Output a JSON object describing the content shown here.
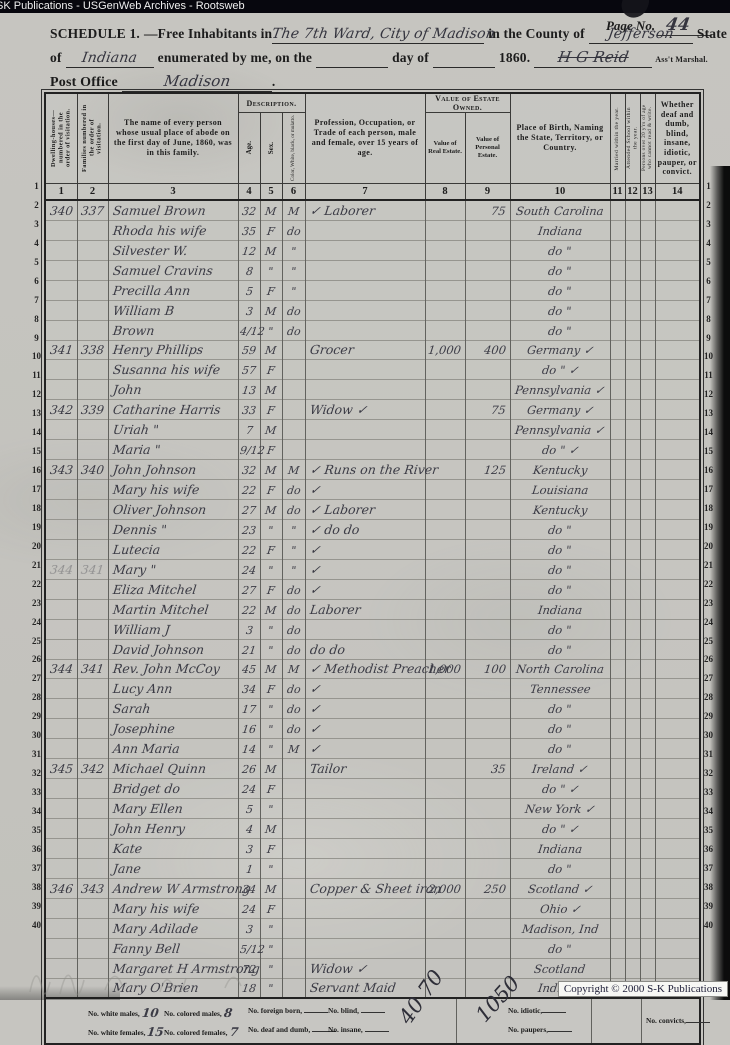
{
  "banner": {
    "text": "SK Publications - USGenWeb Archives - Rootsweb"
  },
  "page_no": {
    "label": "Page No.",
    "value": "44"
  },
  "schedule": {
    "title": "SCHEDULE 1.",
    "free_inhabitants": "—Free Inhabitants in",
    "place": "The 7th Ward, City of Madison",
    "in_county": "in the County of",
    "county": "Jefferson",
    "state_word": "State",
    "of_word": "of",
    "state": "Indiana",
    "enumerated": "enumerated by me, on the",
    "day_of": "day of",
    "year": "1860.",
    "marshal_sig": "H G Reid",
    "marshal_label": "Ass't Marshal.",
    "post_office_label": "Post Office",
    "post_office": "Madison",
    "period": "."
  },
  "table": {
    "description_header": "Description.",
    "estate_header": "Value of Estate Owned.",
    "columns": {
      "c1": "Dwelling-houses— numbered in the order of visitation.",
      "c2": "Families numbered in the order of visitation.",
      "c3": "The name of every person whose usual place of abode on the first day of June, 1860, was in this family.",
      "c4": "Age.",
      "c5": "Sex.",
      "c6": "Color, White, black, or mulatto.",
      "c7": "Profession, Occupation, or Trade of each person, male and female, over 15 years of age.",
      "c8": "Value of Real Estate.",
      "c9": "Value of Personal Estate.",
      "c10": "Place of Birth, Naming the State, Territory, or Country.",
      "c11": "Married within the year.",
      "c12": "Attended School within the year.",
      "c13": "Persons over 20 y'rs of age who cannot read & write.",
      "c14": "Whether deaf and dumb, blind, insane, idiotic, pauper, or convict.",
      "numbers": [
        "1",
        "2",
        "3",
        "4",
        "5",
        "6",
        "7",
        "8",
        "9",
        "10",
        "11",
        "12",
        "13",
        "14"
      ]
    },
    "rows": [
      {
        "no": "1",
        "d": "340",
        "f": "337",
        "name": "Samuel Brown",
        "age": "32",
        "sex": "M",
        "col": "M",
        "occ": "✓ Laborer",
        "pe": "75",
        "born": "South Carolina"
      },
      {
        "no": "2",
        "name": "Rhoda his wife",
        "age": "35",
        "sex": "F",
        "col": "do",
        "born": "Indiana"
      },
      {
        "no": "3",
        "name": "Silvester W.",
        "age": "12",
        "sex": "M",
        "col": "\"",
        "born": "do  \""
      },
      {
        "no": "4",
        "name": "Samuel Cravins",
        "age": "8",
        "sex": "\"",
        "col": "\"",
        "born": "do  \""
      },
      {
        "no": "5",
        "name": "Precilla Ann",
        "age": "5",
        "sex": "F",
        "col": "\"",
        "born": "do  \""
      },
      {
        "no": "6",
        "name": "William B",
        "age": "3",
        "sex": "M",
        "col": "do",
        "born": "do  \""
      },
      {
        "no": "7",
        "name": "Brown",
        "age": "4/12",
        "sex": "\"",
        "col": "do",
        "born": "do  \""
      },
      {
        "no": "8",
        "d": "341",
        "f": "338",
        "name": "Henry Phillips",
        "age": "59",
        "sex": "M",
        "occ": "Grocer",
        "re": "1,000",
        "pe": "400",
        "born": "Germany ✓"
      },
      {
        "no": "9",
        "name": "Susanna his wife",
        "age": "57",
        "sex": "F",
        "born": "do  \" ✓"
      },
      {
        "no": "10",
        "name": "John",
        "age": "13",
        "sex": "M",
        "born": "Pennsylvania ✓"
      },
      {
        "no": "11",
        "d": "342",
        "f": "339",
        "name": "Catharine Harris",
        "age": "33",
        "sex": "F",
        "occ": "Widow  ✓",
        "pe": "75",
        "born": "Germany ✓"
      },
      {
        "no": "12",
        "name": "Uriah  \"",
        "age": "7",
        "sex": "M",
        "born": "Pennsylvania ✓"
      },
      {
        "no": "13",
        "name": "Maria  \"",
        "age": "9/12",
        "sex": "F",
        "born": "do  \" ✓"
      },
      {
        "no": "14",
        "d": "343",
        "f": "340",
        "name": "John Johnson",
        "age": "32",
        "sex": "M",
        "col": "M",
        "occ": "✓ Runs on the River",
        "pe": "125",
        "born": "Kentucky"
      },
      {
        "no": "15",
        "name": "Mary his wife",
        "age": "22",
        "sex": "F",
        "col": "do",
        "occ": "✓",
        "born": "Louisiana"
      },
      {
        "no": "16",
        "name": "Oliver Johnson",
        "age": "27",
        "sex": "M",
        "col": "do",
        "occ": "✓ Laborer",
        "born": "Kentucky"
      },
      {
        "no": "17",
        "name": "Dennis  \"",
        "age": "23",
        "sex": "\"",
        "col": "\"",
        "occ": "✓ do   do",
        "born": "do  \""
      },
      {
        "no": "18",
        "name": "Lutecia",
        "age": "22",
        "sex": "F",
        "col": "\"",
        "occ": "✓",
        "born": "do  \""
      },
      {
        "no": "19",
        "d": "344",
        "f": "341",
        "ghost": true,
        "name": "Mary  \"",
        "age": "24",
        "sex": "\"",
        "col": "\"",
        "occ": "✓",
        "born": "do  \""
      },
      {
        "no": "20",
        "name": "Eliza Mitchel",
        "age": "27",
        "sex": "F",
        "col": "do",
        "occ": "✓",
        "born": "do  \""
      },
      {
        "no": "21",
        "name": "Martin Mitchel",
        "age": "22",
        "sex": "M",
        "col": "do",
        "occ": "Laborer",
        "born": "Indiana"
      },
      {
        "no": "22",
        "name": "William J",
        "age": "3",
        "sex": "\"",
        "col": "do",
        "born": "do  \""
      },
      {
        "no": "23",
        "name": "David Johnson",
        "age": "21",
        "sex": "\"",
        "col": "do",
        "occ": "do    do",
        "born": "do  \""
      },
      {
        "no": "24",
        "d": "344",
        "f": "341",
        "name": "Rev. John McCoy",
        "age": "45",
        "sex": "M",
        "col": "M",
        "occ": "✓ Methodist Preacher",
        "re": "1,000",
        "pe": "100",
        "born": "North Carolina"
      },
      {
        "no": "25",
        "name": "Lucy Ann",
        "age": "34",
        "sex": "F",
        "col": "do",
        "occ": "✓",
        "born": "Tennessee"
      },
      {
        "no": "26",
        "name": "Sarah",
        "age": "17",
        "sex": "\"",
        "col": "do",
        "occ": "✓",
        "born": "do  \""
      },
      {
        "no": "27",
        "name": "Josephine",
        "age": "16",
        "sex": "\"",
        "col": "do",
        "occ": "✓",
        "born": "do  \""
      },
      {
        "no": "28",
        "name": "Ann Maria",
        "age": "14",
        "sex": "\"",
        "col": "M",
        "occ": "✓",
        "born": "do  \""
      },
      {
        "no": "29",
        "d": "345",
        "f": "342",
        "name": "Michael Quinn",
        "age": "26",
        "sex": "M",
        "occ": "Tailor",
        "pe": "35",
        "born": "Ireland ✓"
      },
      {
        "no": "30",
        "name": "Bridget do",
        "age": "24",
        "sex": "F",
        "born": "do  \" ✓"
      },
      {
        "no": "31",
        "name": "Mary Ellen",
        "age": "5",
        "sex": "\"",
        "born": "New York ✓"
      },
      {
        "no": "32",
        "name": "John Henry",
        "age": "4",
        "sex": "M",
        "born": "do  \" ✓"
      },
      {
        "no": "33",
        "name": "Kate",
        "age": "3",
        "sex": "F",
        "born": "Indiana"
      },
      {
        "no": "34",
        "name": "Jane",
        "age": "1",
        "sex": "\"",
        "born": "do  \""
      },
      {
        "no": "35",
        "d": "346",
        "f": "343",
        "name": "Andrew W Armstrong",
        "age": "34",
        "sex": "M",
        "occ": "Copper & Sheet iron",
        "re": "2,000",
        "pe": "250",
        "born": "Scotland ✓"
      },
      {
        "no": "36",
        "name": "Mary his wife",
        "age": "24",
        "sex": "F",
        "born": "Ohio ✓"
      },
      {
        "no": "37",
        "name": "Mary Adilade",
        "age": "3",
        "sex": "\"",
        "born": "Madison, Ind"
      },
      {
        "no": "38",
        "name": "Fanny Bell",
        "age": "5/12",
        "sex": "\"",
        "born": "do  \""
      },
      {
        "no": "39",
        "name": "Margaret H Armstrong",
        "age": "72",
        "sex": "\"",
        "occ": "Widow  ✓",
        "born": "Scotland"
      },
      {
        "no": "40",
        "name": "Mary O'Brien",
        "age": "18",
        "sex": "\"",
        "occ": "Servant Maid",
        "born": "Indiana"
      }
    ]
  },
  "summary": {
    "items_row1": [
      {
        "label": "No. white males,",
        "value": "10"
      },
      {
        "label": "No. colored males,",
        "value": "8"
      },
      {
        "label": "No. foreign born,",
        "value": ""
      },
      {
        "label": "No. blind,",
        "value": ""
      }
    ],
    "items_row2": [
      {
        "label": "No. white females,",
        "value": "15"
      },
      {
        "label": "No. colored females,",
        "value": "7"
      },
      {
        "label": "No. deaf and dumb,",
        "value": ""
      },
      {
        "label": "No. insane,",
        "value": ""
      }
    ],
    "idiotic_label": "No. idiotic,",
    "paupers_label": "No. paupers,",
    "convicts_label": "No. convicts,",
    "handwritten_1": "40 70",
    "handwritten_2": "1050"
  },
  "copyright": "Copyright © 2000 S-K Publications"
}
